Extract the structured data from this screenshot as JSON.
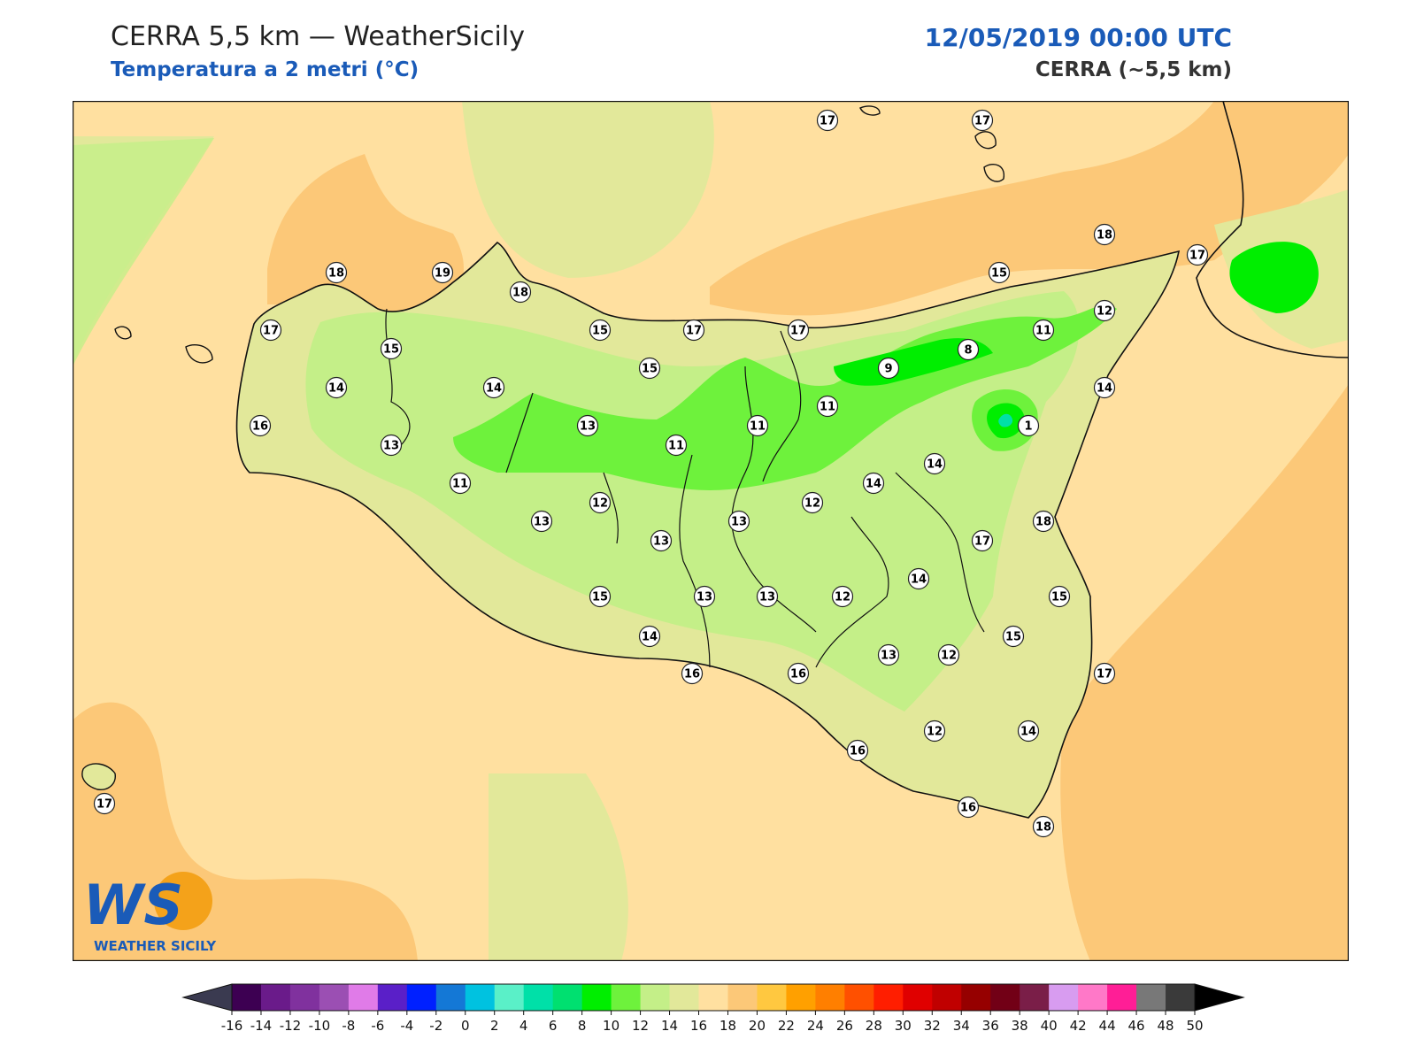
{
  "header": {
    "title": "CERRA 5,5 km — WeatherSicily",
    "subtitle": "Temperatura a 2 metri (°C)",
    "datetime": "12/05/2019 00:00 UTC",
    "model": "CERRA (~5,5 km)"
  },
  "logo": {
    "text": "WEATHER SICILY",
    "monogram": "WS"
  },
  "colorbar": {
    "ticks": [
      "-16",
      "-14",
      "-12",
      "-10",
      "-8",
      "-6",
      "-4",
      "-2",
      "0",
      "2",
      "4",
      "6",
      "8",
      "10",
      "12",
      "14",
      "16",
      "18",
      "20",
      "22",
      "24",
      "26",
      "28",
      "30",
      "32",
      "34",
      "36",
      "38",
      "40",
      "42",
      "44",
      "46",
      "48",
      "50"
    ],
    "colors": [
      "#3d0052",
      "#6a1b8a",
      "#80319e",
      "#9b4fb3",
      "#e07be8",
      "#5a1fc8",
      "#0020ff",
      "#1478d6",
      "#00c2e0",
      "#5af0c8",
      "#00e0a8",
      "#00e070",
      "#00ee00",
      "#6ef23c",
      "#c4ef88",
      "#e2e89a",
      "#ffe0a0",
      "#fcc878",
      "#ffc840",
      "#ffa000",
      "#ff7f00",
      "#ff5000",
      "#ff1e00",
      "#e00000",
      "#c00000",
      "#960000",
      "#720016",
      "#7a1e48",
      "#d89cf0",
      "#ff78c8",
      "#ff1e96",
      "#787878",
      "#3a3a3a"
    ],
    "under_color": "#3a3a50",
    "over_color": "#000000"
  },
  "map_points": [
    {
      "v": "17"
    },
    {
      "v": "17"
    },
    {
      "v": "18"
    },
    {
      "v": "19"
    },
    {
      "v": "18"
    },
    {
      "v": "18"
    },
    {
      "v": "17"
    },
    {
      "v": "17"
    },
    {
      "v": "15"
    },
    {
      "v": "17"
    },
    {
      "v": "17"
    },
    {
      "v": "15"
    },
    {
      "v": "12"
    },
    {
      "v": "15"
    },
    {
      "v": "11"
    },
    {
      "v": "8"
    },
    {
      "v": "9"
    },
    {
      "v": "14"
    },
    {
      "v": "14"
    },
    {
      "v": "14"
    },
    {
      "v": "16"
    },
    {
      "v": "13"
    },
    {
      "v": "13"
    },
    {
      "v": "11"
    },
    {
      "v": "11"
    },
    {
      "v": "11"
    },
    {
      "v": "1"
    },
    {
      "v": "15"
    },
    {
      "v": "11"
    },
    {
      "v": "12"
    },
    {
      "v": "14"
    },
    {
      "v": "14"
    },
    {
      "v": "13"
    },
    {
      "v": "12"
    },
    {
      "v": "13"
    },
    {
      "v": "13"
    },
    {
      "v": "18"
    },
    {
      "v": "17"
    },
    {
      "v": "14"
    },
    {
      "v": "15"
    },
    {
      "v": "13"
    },
    {
      "v": "13"
    },
    {
      "v": "12"
    },
    {
      "v": "15"
    },
    {
      "v": "14"
    },
    {
      "v": "13"
    },
    {
      "v": "12"
    },
    {
      "v": "17"
    },
    {
      "v": "16"
    },
    {
      "v": "16"
    },
    {
      "v": "12"
    },
    {
      "v": "14"
    },
    {
      "v": "16"
    },
    {
      "v": "16"
    },
    {
      "v": "18"
    },
    {
      "v": "17"
    },
    {
      "v": "15"
    }
  ]
}
